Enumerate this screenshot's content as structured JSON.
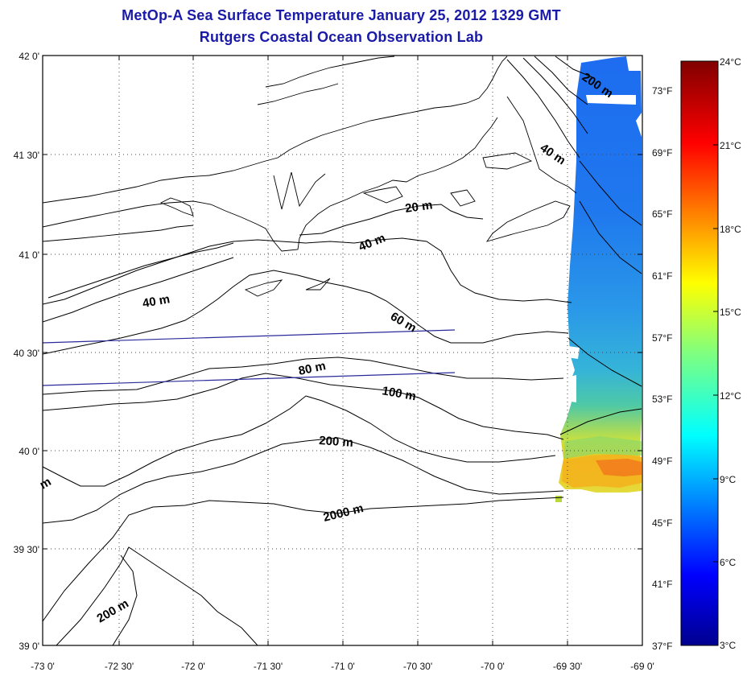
{
  "title": {
    "line1": "MetOp-A Sea Surface Temperature January 25, 2012 1329 GMT",
    "line2": "Rutgers Coastal Ocean Observation Lab"
  },
  "axes": {
    "lat_labels": [
      "42 0'",
      "41 30'",
      "41 0'",
      "40 30'",
      "40 0'",
      "39 30'",
      "39 0'"
    ],
    "lon_labels": [
      "-73 0'",
      "-72 30'",
      "-72 0'",
      "-71 30'",
      "-71 0'",
      "-70 30'",
      "-70 0'",
      "-69 30'",
      "-69 0'"
    ],
    "lat_range": [
      39.0,
      42.0
    ],
    "lon_range": [
      -73.0,
      -69.0
    ]
  },
  "fahrenheit_labels": [
    "73°F",
    "69°F",
    "65°F",
    "61°F",
    "57°F",
    "53°F",
    "49°F",
    "45°F",
    "41°F",
    "37°F"
  ],
  "colorbar": {
    "celsius_labels": [
      "24°C",
      "21°C",
      "18°C",
      "15°C",
      "12°C",
      "9°C",
      "6°C",
      "3°C"
    ],
    "range_c": [
      3,
      24
    ]
  },
  "contour_labels": [
    "20 m",
    "40 m",
    "40 m",
    "40 m",
    "60 m",
    "80 m",
    "100 m",
    "200 m",
    "200 m",
    "200 m",
    "2000 m",
    "m"
  ],
  "colors": {
    "title": "#1a1aa8",
    "track_line": "#2a2a9a"
  }
}
